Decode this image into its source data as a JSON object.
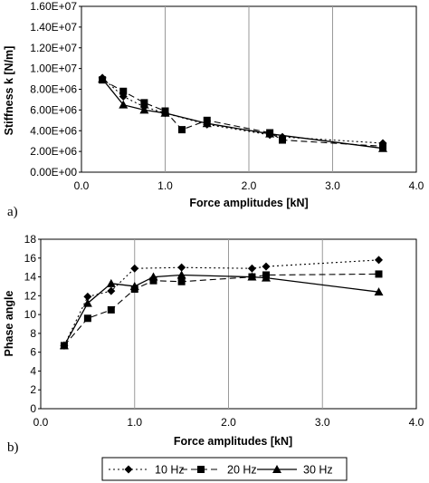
{
  "chart_data": [
    {
      "type": "line",
      "panel_label": "a)",
      "xlabel": "Force amplitudes [kN]",
      "ylabel": "Stiffness k [N/m]",
      "xlim": [
        0.0,
        4.0
      ],
      "ylim": [
        0,
        16000000
      ],
      "x_ticks": [
        "0.0",
        "1.0",
        "2.0",
        "3.0",
        "4.0"
      ],
      "y_ticks": [
        "0.00E+00",
        "2.00E+06",
        "4.00E+06",
        "6.00E+06",
        "8.00E+06",
        "1.00E+07",
        "1.20E+07",
        "1.40E+07",
        "1.60E+07"
      ],
      "grid": "vertical",
      "series": [
        {
          "name": "10 Hz",
          "marker": "diamond",
          "line": "dotted",
          "x": [
            0.25,
            0.5,
            0.75,
            1.0,
            1.5,
            2.25,
            2.4,
            3.6
          ],
          "y": [
            9100000,
            7300000,
            6300000,
            5700000,
            4600000,
            3600000,
            3400000,
            2800000
          ]
        },
        {
          "name": "20 Hz",
          "marker": "square",
          "line": "dashed",
          "x": [
            0.25,
            0.5,
            0.75,
            1.0,
            1.2,
            1.5,
            2.25,
            2.4,
            3.6
          ],
          "y": [
            8900000,
            7800000,
            6700000,
            5900000,
            4100000,
            5000000,
            3800000,
            3100000,
            2500000
          ]
        },
        {
          "name": "30 Hz",
          "marker": "triangle",
          "line": "solid",
          "x": [
            0.25,
            0.5,
            0.75,
            1.0,
            1.5,
            2.25,
            3.6
          ],
          "y": [
            9000000,
            6500000,
            6000000,
            5700000,
            4700000,
            3700000,
            2300000
          ]
        }
      ]
    },
    {
      "type": "line",
      "panel_label": "b)",
      "xlabel": "Force amplitudes [kN]",
      "ylabel": "Phase angle",
      "xlim": [
        0.0,
        4.0
      ],
      "ylim": [
        0,
        18
      ],
      "x_ticks": [
        "0.0",
        "1.0",
        "2.0",
        "3.0",
        "4.0"
      ],
      "y_ticks": [
        "0",
        "2",
        "4",
        "6",
        "8",
        "10",
        "12",
        "14",
        "16",
        "18"
      ],
      "grid": "vertical",
      "series": [
        {
          "name": "10 Hz",
          "marker": "diamond",
          "line": "dotted",
          "x": [
            0.25,
            0.5,
            0.75,
            1.0,
            1.5,
            2.25,
            2.4,
            3.6
          ],
          "y": [
            6.7,
            11.9,
            12.5,
            14.9,
            15.0,
            14.9,
            15.1,
            15.8
          ]
        },
        {
          "name": "20 Hz",
          "marker": "square",
          "line": "dashed",
          "x": [
            0.25,
            0.5,
            0.75,
            1.0,
            1.2,
            1.5,
            2.25,
            2.4,
            3.6
          ],
          "y": [
            6.7,
            9.6,
            10.5,
            12.7,
            13.6,
            13.5,
            14.0,
            14.2,
            14.3
          ]
        },
        {
          "name": "30 Hz",
          "marker": "triangle",
          "line": "solid",
          "x": [
            0.25,
            0.5,
            0.75,
            1.0,
            1.2,
            1.5,
            2.25,
            2.4,
            3.6
          ],
          "y": [
            6.7,
            11.2,
            13.3,
            13.0,
            14.0,
            14.2,
            14.0,
            13.9,
            12.4
          ]
        }
      ]
    }
  ],
  "legend": [
    {
      "label": "10 Hz",
      "marker": "diamond",
      "line": "dotted"
    },
    {
      "label": "20 Hz",
      "marker": "square",
      "line": "dashed"
    },
    {
      "label": "30 Hz",
      "marker": "triangle",
      "line": "solid"
    }
  ]
}
